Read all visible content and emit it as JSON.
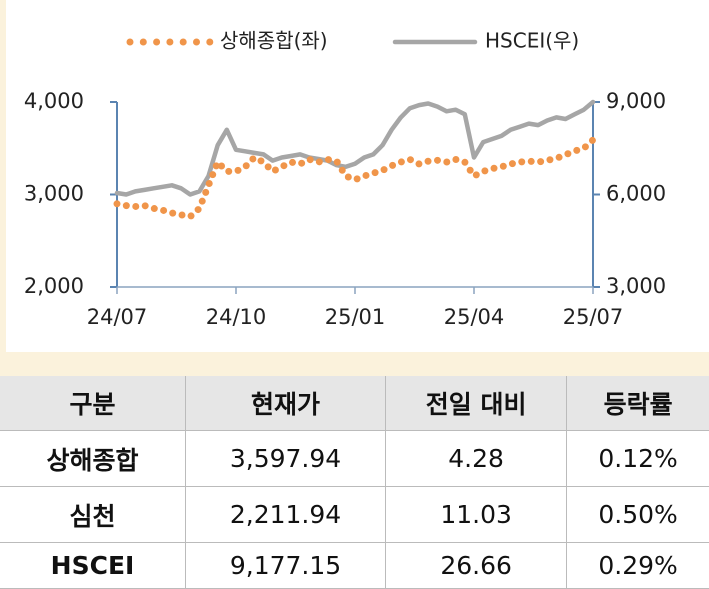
{
  "chart_data": {
    "type": "line",
    "categories": [
      "24/07",
      null,
      null,
      null,
      null,
      null,
      null,
      null,
      null,
      null,
      null,
      null,
      null,
      "24/10",
      null,
      null,
      null,
      null,
      null,
      null,
      null,
      null,
      null,
      null,
      null,
      null,
      "25/01",
      null,
      null,
      null,
      null,
      null,
      null,
      null,
      null,
      null,
      null,
      null,
      null,
      "25/04",
      null,
      null,
      null,
      null,
      null,
      null,
      null,
      null,
      null,
      null,
      null,
      null,
      "25/07"
    ],
    "series": [
      {
        "name": "상해종합(좌)",
        "color": "#f0954a",
        "style": "dotted",
        "axis": "y",
        "values": [
          2900,
          2880,
          2870,
          2880,
          2850,
          2830,
          2800,
          2780,
          2760,
          2850,
          3100,
          3350,
          3250,
          3250,
          3300,
          3400,
          3350,
          3250,
          3300,
          3350,
          3330,
          3380,
          3350,
          3380,
          3360,
          3200,
          3160,
          3200,
          3230,
          3260,
          3310,
          3350,
          3380,
          3330,
          3360,
          3370,
          3350,
          3380,
          3350,
          3200,
          3250,
          3280,
          3300,
          3330,
          3350,
          3360,
          3350,
          3370,
          3390,
          3430,
          3470,
          3500,
          3590
        ]
      },
      {
        "name": "HSCEI(우)",
        "color": "#a6a6a6",
        "style": "solid",
        "axis": "y2",
        "values": [
          6050,
          6000,
          6100,
          6150,
          6200,
          6250,
          6300,
          6200,
          6000,
          6100,
          6600,
          7600,
          8100,
          7450,
          7400,
          7350,
          7300,
          7100,
          7200,
          7250,
          7300,
          7200,
          7150,
          7100,
          6950,
          6900,
          7000,
          7200,
          7300,
          7600,
          8100,
          8500,
          8800,
          8900,
          8950,
          8850,
          8700,
          8750,
          8600,
          7200,
          7700,
          7800,
          7900,
          8100,
          8200,
          8300,
          8250,
          8400,
          8500,
          8450,
          8600,
          8750,
          9000
        ]
      }
    ],
    "ylim": [
      2000,
      4000
    ],
    "yticks": [
      {
        "value": 2000,
        "label": "2,000"
      },
      {
        "value": 3000,
        "label": "3,000"
      },
      {
        "value": 4000,
        "label": "4,000"
      }
    ],
    "y2lim": [
      3000,
      9000
    ],
    "y2ticks": [
      {
        "value": 3000,
        "label": "3,000"
      },
      {
        "value": 6000,
        "label": "6,000"
      },
      {
        "value": 9000,
        "label": "9,000"
      }
    ],
    "legend": "top",
    "axis_color": "#5b84b1"
  },
  "table": {
    "header": [
      "구분",
      "현재가",
      "전일 대비",
      "등락률"
    ],
    "rows": [
      [
        "상해종합",
        "3,597.94",
        "4.28",
        "0.12%"
      ],
      [
        "심천",
        "2,211.94",
        "11.03",
        "0.50%"
      ],
      [
        "HSCEI",
        "9,177.15",
        "26.66",
        "0.29%"
      ]
    ]
  }
}
